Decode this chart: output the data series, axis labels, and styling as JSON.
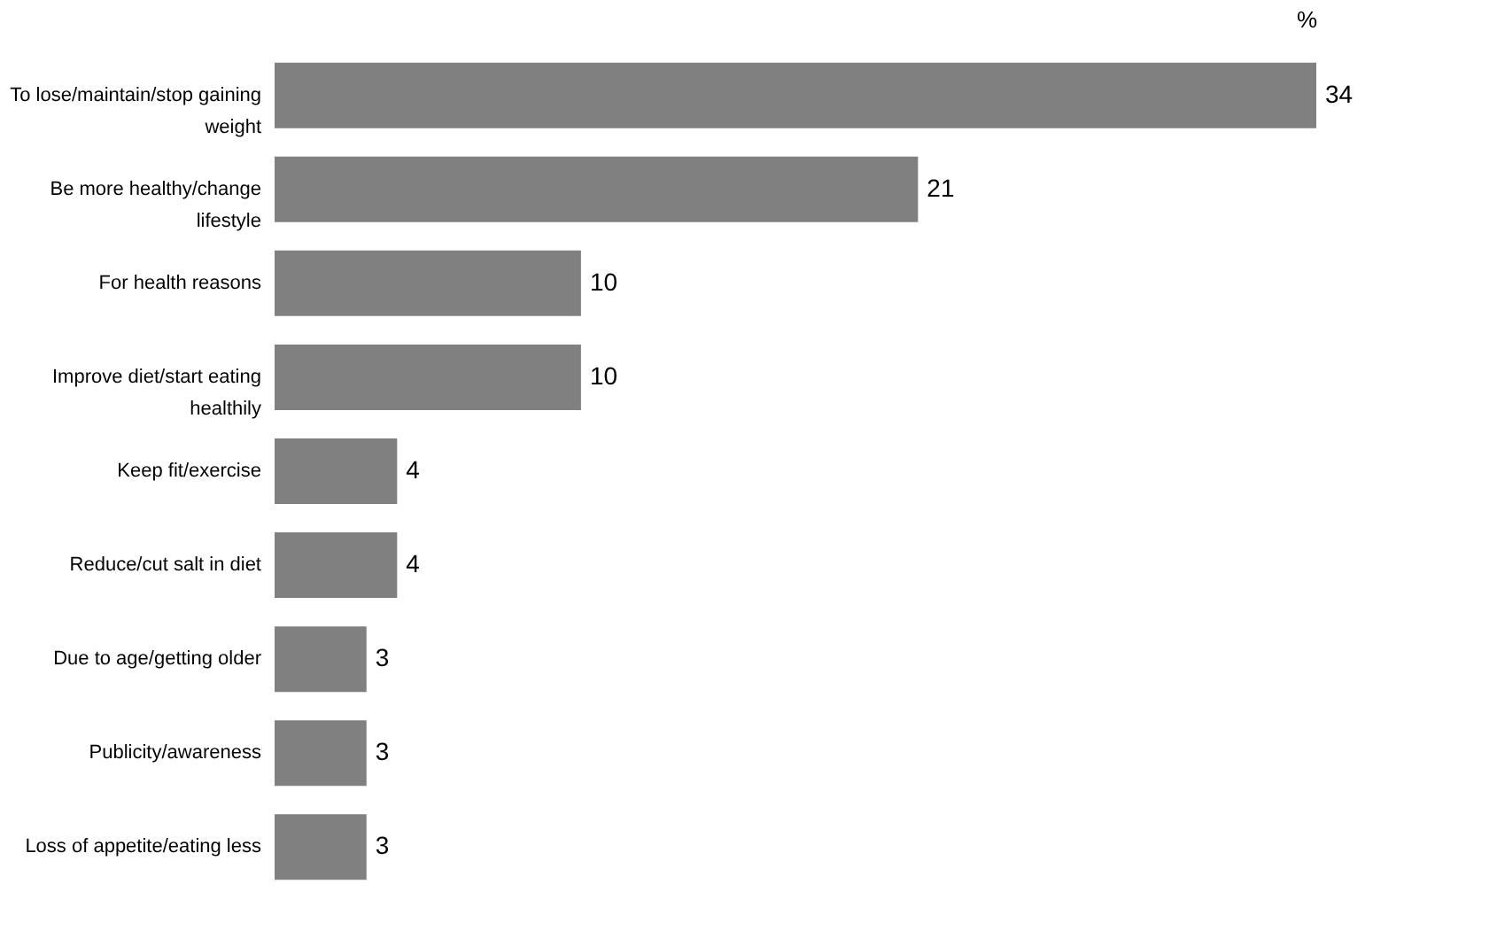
{
  "chart_data": {
    "type": "bar",
    "orientation": "horizontal",
    "xlabel": "%",
    "categories": [
      "To lose/maintain/stop gaining weight",
      "Be more healthy/change lifestyle",
      "For health reasons",
      "Improve diet/start eating healthily",
      "Keep fit/exercise",
      "Reduce/cut salt in diet",
      "Due to age/getting older",
      "Publicity/awareness",
      "Loss of appetite/eating less"
    ],
    "values": [
      34,
      21,
      10,
      10,
      4,
      4,
      3,
      3,
      3
    ],
    "color": "#808080",
    "data_labels": true,
    "grid": false
  }
}
